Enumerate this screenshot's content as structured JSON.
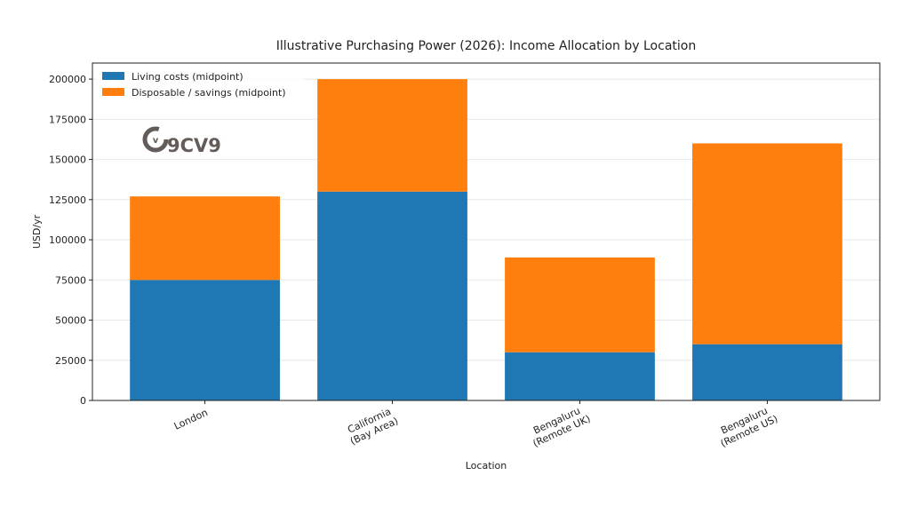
{
  "chart_data": {
    "type": "bar",
    "stacked": true,
    "title": "Illustrative Purchasing Power (2026): Income Allocation by Location",
    "xlabel": "Location",
    "ylabel": "USD/yr",
    "categories": [
      [
        "London"
      ],
      [
        "California",
        "(Bay Area)"
      ],
      [
        "Bengaluru",
        "(Remote UK)"
      ],
      [
        "Bengaluru",
        "(Remote US)"
      ]
    ],
    "series": [
      {
        "name": "Living costs (midpoint)",
        "color": "#1f77b4",
        "values": [
          75000,
          130000,
          30000,
          35000
        ]
      },
      {
        "name": "Disposable / savings (midpoint)",
        "color": "#ff7f0e",
        "values": [
          52000,
          70000,
          59000,
          125000
        ]
      }
    ],
    "ylim": [
      0,
      210000
    ],
    "yticks": [
      0,
      25000,
      50000,
      75000,
      100000,
      125000,
      150000,
      175000,
      200000
    ],
    "grid": "y",
    "legend": "top-left",
    "watermark": "9CV9"
  }
}
